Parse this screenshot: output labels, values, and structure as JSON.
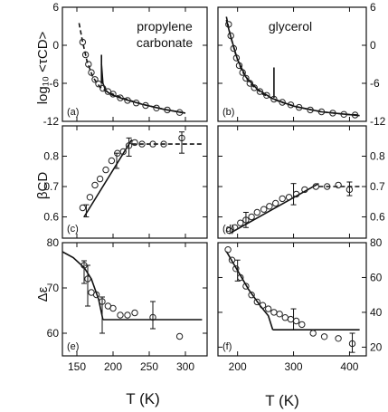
{
  "figure": {
    "x_axis_label": "T (K)",
    "y_axis_labels": [
      "log₁₀ <τCD>",
      "βCD",
      "Δε"
    ]
  },
  "chart_data": [
    {
      "id": "a",
      "type": "scatter",
      "panel_label": "(a)",
      "annotation": [
        "propylene",
        "carbonate"
      ],
      "xlim": [
        130,
        330
      ],
      "ylim": [
        -12,
        6
      ],
      "xticks": [
        150,
        200,
        250,
        300
      ],
      "xtick_labels": [],
      "yticks": [
        -12,
        -6,
        0,
        6
      ],
      "ytick_labels": [
        "-12",
        "-6",
        "0",
        "6"
      ],
      "ytick_side": "left",
      "points": [
        [
          158,
          0.5
        ],
        [
          162,
          -1.5
        ],
        [
          166,
          -3
        ],
        [
          170,
          -4.3
        ],
        [
          175,
          -5.4
        ],
        [
          180,
          -6.1
        ],
        [
          186,
          -6.8
        ],
        [
          193,
          -7.3
        ],
        [
          200,
          -7.7
        ],
        [
          210,
          -8.3
        ],
        [
          220,
          -8.7
        ],
        [
          232,
          -9.1
        ],
        [
          245,
          -9.5
        ],
        [
          260,
          -9.9
        ],
        [
          275,
          -10.2
        ],
        [
          292,
          -10.6
        ]
      ],
      "error_bars": [],
      "curves": [
        {
          "style": "dashed",
          "points": [
            [
              153,
              3.5
            ],
            [
              158,
              0.5
            ],
            [
              164,
              -2.5
            ],
            [
              172,
              -5
            ],
            [
              182,
              -6.6
            ],
            [
              195,
              -7.5
            ],
            [
              215,
              -8.4
            ],
            [
              240,
              -9.3
            ],
            [
              270,
              -10.1
            ],
            [
              300,
              -10.7
            ]
          ]
        },
        {
          "style": "solid",
          "points": [
            [
              184,
              -3
            ],
            [
              186,
              -6
            ],
            [
              190,
              -7.2
            ],
            [
              198,
              -7.8
            ],
            [
              215,
              -8.5
            ],
            [
              240,
              -9.3
            ],
            [
              270,
              -10.1
            ],
            [
              300,
              -10.7
            ]
          ]
        },
        {
          "style": "solid",
          "points": [
            [
              184,
              -1.5
            ],
            [
              184,
              -6
            ]
          ]
        }
      ]
    },
    {
      "id": "b",
      "type": "scatter",
      "panel_label": "(b)",
      "annotation": [
        "glycerol"
      ],
      "xlim": [
        165,
        430
      ],
      "ylim": [
        -12,
        6
      ],
      "xticks": [
        200,
        300,
        400
      ],
      "xtick_labels": [],
      "yticks": [
        -12,
        -6,
        0,
        6
      ],
      "ytick_labels": [
        "-12",
        "-6",
        "0",
        "6"
      ],
      "ytick_side": "right",
      "points": [
        [
          184,
          3.3
        ],
        [
          188,
          1.5
        ],
        [
          193,
          -0.5
        ],
        [
          198,
          -2
        ],
        [
          203,
          -3.2
        ],
        [
          209,
          -4.3
        ],
        [
          215,
          -5.2
        ],
        [
          222,
          -6
        ],
        [
          230,
          -6.7
        ],
        [
          240,
          -7.3
        ],
        [
          252,
          -7.9
        ],
        [
          265,
          -8.5
        ],
        [
          280,
          -9
        ],
        [
          295,
          -9.4
        ],
        [
          310,
          -9.8
        ],
        [
          330,
          -10.2
        ],
        [
          350,
          -10.5
        ],
        [
          370,
          -10.7
        ],
        [
          390,
          -10.9
        ],
        [
          410,
          -11
        ]
      ],
      "error_bars": [],
      "curves": [
        {
          "style": "dashed",
          "points": [
            [
              180,
              4.5
            ],
            [
              186,
              2
            ],
            [
              195,
              -1
            ],
            [
              207,
              -3.9
            ],
            [
              222,
              -6
            ],
            [
              245,
              -7.7
            ],
            [
              275,
              -8.9
            ],
            [
              310,
              -9.8
            ],
            [
              350,
              -10.5
            ],
            [
              400,
              -10.95
            ],
            [
              418,
              -11
            ]
          ]
        },
        {
          "style": "solid",
          "points": [
            [
              180,
              4
            ],
            [
              188,
              1.3
            ],
            [
              200,
              -2.3
            ],
            [
              215,
              -5
            ],
            [
              235,
              -6.9
            ],
            [
              262,
              -8.4
            ],
            [
              300,
              -9.6
            ],
            [
              350,
              -10.5
            ],
            [
              418,
              -11.1
            ]
          ]
        },
        {
          "style": "solid",
          "points": [
            [
              265,
              -3.5
            ],
            [
              265,
              -8.3
            ]
          ]
        }
      ]
    },
    {
      "id": "c",
      "type": "scatter",
      "panel_label": "(c)",
      "annotation": [],
      "xlim": [
        130,
        330
      ],
      "ylim": [
        0.53,
        0.9
      ],
      "xticks": [
        150,
        200,
        250,
        300
      ],
      "xtick_labels": [],
      "yticks": [
        0.6,
        0.7,
        0.8
      ],
      "ytick_labels": [
        "0.6",
        "0.7",
        "0.8"
      ],
      "ytick_side": "left",
      "points": [
        [
          158,
          0.63
        ],
        [
          168,
          0.665
        ],
        [
          175,
          0.705
        ],
        [
          182,
          0.725
        ],
        [
          190,
          0.755
        ],
        [
          198,
          0.785
        ],
        [
          206,
          0.81
        ],
        [
          214,
          0.815
        ],
        [
          222,
          0.835
        ],
        [
          230,
          0.845
        ],
        [
          240,
          0.84
        ],
        [
          255,
          0.84
        ],
        [
          270,
          0.84
        ],
        [
          295,
          0.86
        ]
      ],
      "error_bars": [
        [
          163,
          0.6,
          0.64
        ],
        [
          205,
          0.76,
          0.81
        ],
        [
          222,
          0.8,
          0.86
        ],
        [
          295,
          0.81,
          0.88
        ]
      ],
      "curves": [
        {
          "style": "solid",
          "points": [
            [
              160,
              0.6
            ],
            [
              226,
              0.855
            ]
          ]
        },
        {
          "style": "dashed",
          "points": [
            [
              226,
              0.84
            ],
            [
              323,
              0.84
            ]
          ]
        }
      ]
    },
    {
      "id": "d",
      "type": "scatter",
      "panel_label": "(d)",
      "annotation": [],
      "xlim": [
        165,
        430
      ],
      "ylim": [
        0.53,
        0.9
      ],
      "xticks": [
        200,
        300,
        400
      ],
      "xtick_labels": [],
      "yticks": [
        0.6,
        0.7,
        0.8
      ],
      "ytick_labels": [
        "0.6",
        "0.7",
        "0.8"
      ],
      "ytick_side": "right",
      "points": [
        [
          185,
          0.555
        ],
        [
          195,
          0.565
        ],
        [
          205,
          0.58
        ],
        [
          215,
          0.59
        ],
        [
          225,
          0.6
        ],
        [
          235,
          0.615
        ],
        [
          247,
          0.625
        ],
        [
          257,
          0.635
        ],
        [
          268,
          0.645
        ],
        [
          280,
          0.66
        ],
        [
          292,
          0.665
        ],
        [
          305,
          0.675
        ],
        [
          320,
          0.69
        ],
        [
          340,
          0.7
        ],
        [
          360,
          0.7
        ],
        [
          380,
          0.705
        ],
        [
          400,
          0.69
        ]
      ],
      "error_bars": [
        [
          215,
          0.565,
          0.615
        ],
        [
          300,
          0.64,
          0.71
        ],
        [
          400,
          0.67,
          0.715
        ]
      ],
      "curves": [
        {
          "style": "solid",
          "points": [
            [
              185,
              0.545
            ],
            [
              345,
              0.71
            ]
          ]
        },
        {
          "style": "dashed",
          "points": [
            [
              345,
              0.7
            ],
            [
              418,
              0.7
            ]
          ]
        }
      ]
    },
    {
      "id": "e",
      "type": "scatter",
      "panel_label": "(e)",
      "annotation": [],
      "xlim": [
        130,
        330
      ],
      "ylim": [
        55,
        80
      ],
      "xticks": [
        150,
        200,
        250,
        300
      ],
      "xtick_labels": [
        "150",
        "200",
        "250",
        "300"
      ],
      "yticks": [
        60,
        70,
        80
      ],
      "ytick_labels": [
        "60",
        "70",
        "80"
      ],
      "ytick_side": "left",
      "points": [
        [
          160,
          75
        ],
        [
          165,
          72
        ],
        [
          170,
          69
        ],
        [
          177,
          68.5
        ],
        [
          185,
          67
        ],
        [
          193,
          66
        ],
        [
          200,
          65.5
        ],
        [
          210,
          64
        ],
        [
          220,
          64
        ],
        [
          230,
          64.5
        ],
        [
          255,
          63.5
        ],
        [
          292,
          59.3
        ]
      ],
      "error_bars": [
        [
          160,
          71,
          76
        ],
        [
          165,
          66,
          75
        ],
        [
          185,
          60,
          68
        ],
        [
          255,
          61,
          67
        ]
      ],
      "curves": [
        {
          "style": "solid",
          "points": [
            [
              130,
              78
            ],
            [
              145,
              76.7
            ],
            [
              160,
              74.5
            ],
            [
              170,
              72
            ],
            [
              180,
              67.5
            ],
            [
              186,
              63
            ]
          ]
        },
        {
          "style": "solid",
          "points": [
            [
              186,
              63
            ],
            [
              323,
              63
            ]
          ]
        }
      ]
    },
    {
      "id": "f",
      "type": "scatter",
      "panel_label": "(f)",
      "annotation": [],
      "xlim": [
        165,
        430
      ],
      "ylim": [
        15,
        80
      ],
      "xticks": [
        200,
        300,
        400
      ],
      "xtick_labels": [
        "200",
        "300",
        "400"
      ],
      "yticks": [
        20,
        40,
        60,
        80
      ],
      "ytick_labels": [
        "20",
        "40",
        "60",
        "80"
      ],
      "ytick_side": "right",
      "points": [
        [
          183,
          76
        ],
        [
          190,
          70
        ],
        [
          197,
          65
        ],
        [
          205,
          60
        ],
        [
          215,
          55
        ],
        [
          225,
          50
        ],
        [
          235,
          46
        ],
        [
          245,
          44
        ],
        [
          255,
          42
        ],
        [
          265,
          40
        ],
        [
          275,
          39
        ],
        [
          285,
          37
        ],
        [
          295,
          36
        ],
        [
          305,
          35
        ],
        [
          315,
          33
        ],
        [
          335,
          28
        ],
        [
          355,
          26
        ],
        [
          380,
          25
        ],
        [
          405,
          22
        ]
      ],
      "error_bars": [
        [
          200,
          58,
          70
        ],
        [
          300,
          30,
          42
        ],
        [
          405,
          17,
          28
        ]
      ],
      "curves": [
        {
          "style": "solid",
          "points": [
            [
              180,
              75
            ],
            [
              200,
              64
            ],
            [
              220,
              53
            ],
            [
              240,
              44
            ],
            [
              255,
              38
            ],
            [
              263,
              30
            ]
          ]
        },
        {
          "style": "solid",
          "points": [
            [
              263,
              30
            ],
            [
              418,
              30
            ]
          ]
        }
      ]
    }
  ]
}
